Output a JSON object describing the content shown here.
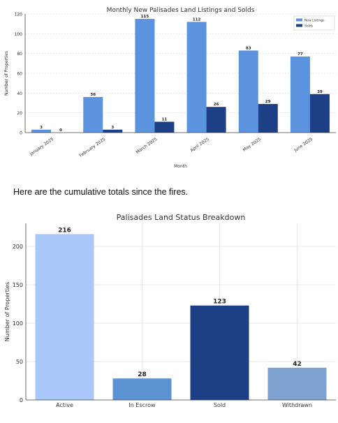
{
  "caption": "Here are the cumulative totals since the fires.",
  "colors": {
    "new_listings": "#5b93de",
    "solds": "#1c3f86",
    "status_bars": [
      "#a9c8f9",
      "#5b93d2",
      "#1c3f86",
      "#7fa2d1"
    ],
    "grid": "#e3e3e3",
    "axis": "#444444"
  },
  "chart_data": [
    {
      "type": "bar",
      "title": "Monthly New Palisades Land Listings and Solds",
      "xlabel": "Month",
      "ylabel": "Number of Properties",
      "categories": [
        "January 2025",
        "February 2025",
        "March 2025",
        "April 2025",
        "May 2025",
        "June 2025"
      ],
      "series": [
        {
          "name": "New Listings",
          "values": [
            3,
            36,
            115,
            112,
            83,
            77
          ]
        },
        {
          "name": "Solds",
          "values": [
            0,
            3,
            11,
            26,
            29,
            39
          ]
        }
      ],
      "ylim": [
        0,
        120
      ],
      "yticks": [
        0,
        20,
        40,
        60,
        80,
        100,
        120
      ],
      "legend": "top-right",
      "grid": true
    },
    {
      "type": "bar",
      "title": "Palisades Land Status Breakdown",
      "xlabel": "",
      "ylabel": "Number of Properties",
      "categories": [
        "Active",
        "In Escrow",
        "Sold",
        "Withdrawn"
      ],
      "values": [
        216,
        28,
        123,
        42
      ],
      "ylim": [
        0,
        230
      ],
      "yticks": [
        0,
        50,
        100,
        150,
        200
      ],
      "grid": true
    }
  ]
}
